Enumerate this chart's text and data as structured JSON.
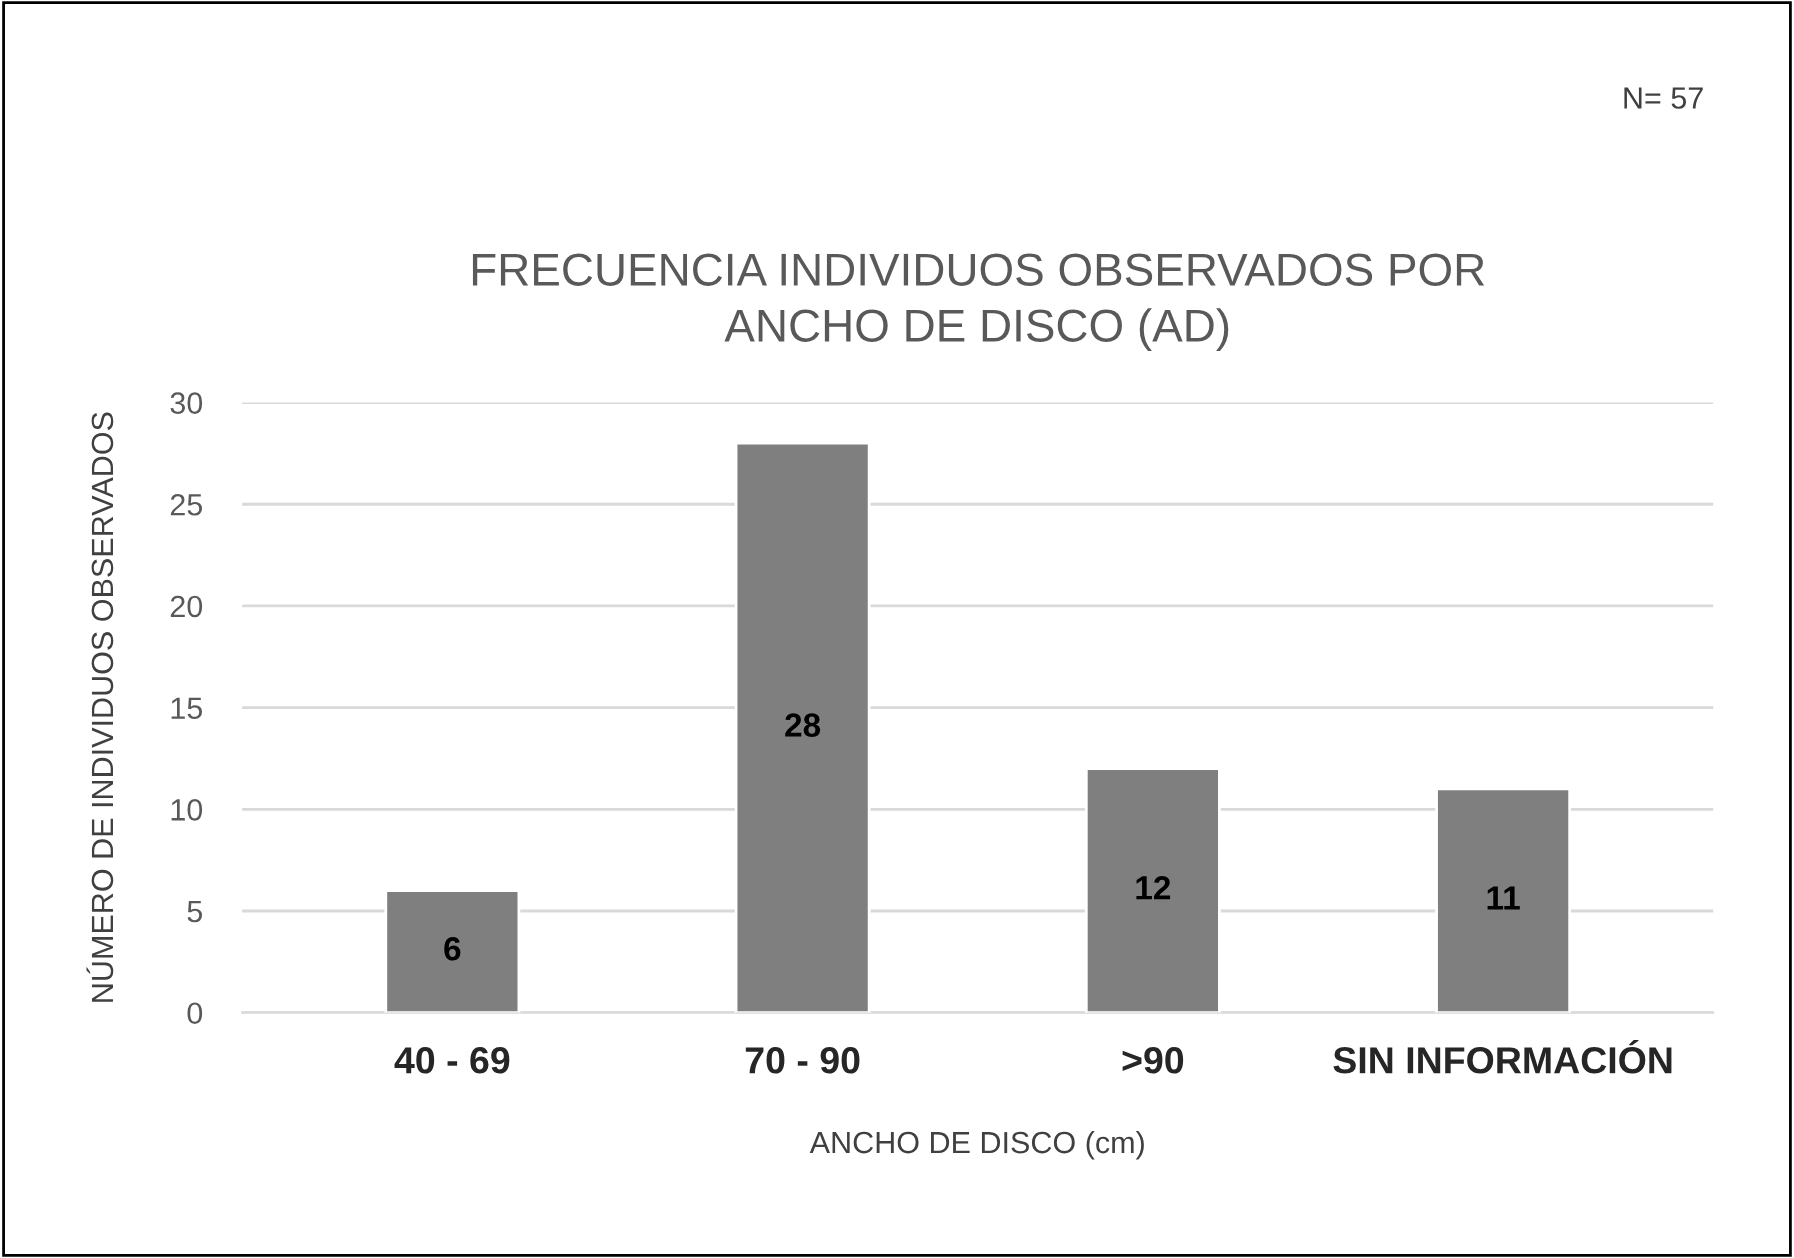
{
  "chart_data": {
    "type": "bar",
    "title": "FRECUENCIA INDIVIDUOS OBSERVADOS POR\nANCHO DE DISCO (AD)",
    "xlabel": "ANCHO DE DISCO (cm)",
    "ylabel": "NÚMERO DE INDIVIDUOS OBSERVADOS",
    "categories": [
      "40 - 69",
      "70 - 90",
      ">90",
      "SIN INFORMACIÓN"
    ],
    "values": [
      6,
      28,
      12,
      11
    ],
    "color": "#7f7f7f",
    "ylim": [
      0,
      30
    ],
    "yticks": [
      0,
      5,
      10,
      15,
      20,
      25,
      30
    ],
    "grid": "y",
    "data_labels": true,
    "annotations": [
      "N= 57"
    ]
  }
}
